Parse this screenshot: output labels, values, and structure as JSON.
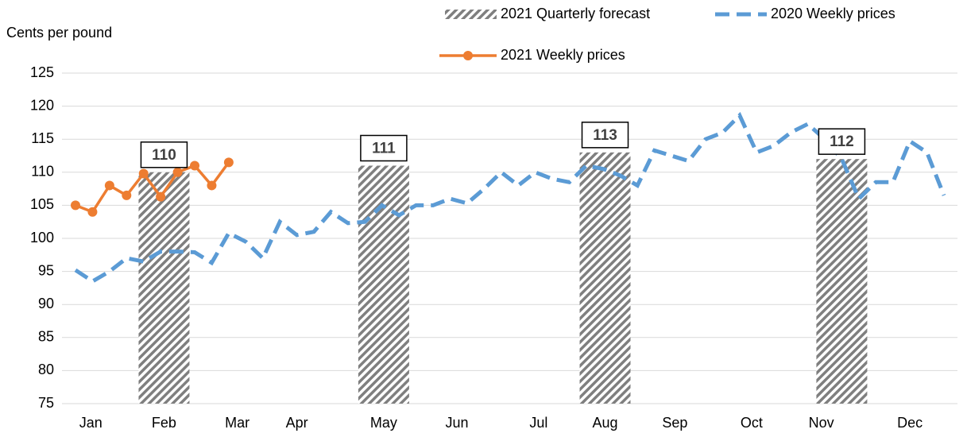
{
  "chart_data": {
    "type": "combo",
    "y_label": "Cents per pound",
    "ylim": [
      75,
      125
    ],
    "yticks": [
      75,
      80,
      85,
      90,
      95,
      100,
      105,
      110,
      115,
      120,
      125
    ],
    "grid": true,
    "xlim": [
      0,
      51
    ],
    "xticks": [
      {
        "value": 0.9,
        "label": "Jan"
      },
      {
        "value": 5.2,
        "label": "Feb"
      },
      {
        "value": 9.5,
        "label": "Mar"
      },
      {
        "value": 13,
        "label": "Apr"
      },
      {
        "value": 18.1,
        "label": "May"
      },
      {
        "value": 22.4,
        "label": "Jun"
      },
      {
        "value": 27.2,
        "label": "Jul"
      },
      {
        "value": 31.1,
        "label": "Aug"
      },
      {
        "value": 35.2,
        "label": "Sep"
      },
      {
        "value": 39.7,
        "label": "Oct"
      },
      {
        "value": 43.8,
        "label": "Nov"
      },
      {
        "value": 49,
        "label": "Dec"
      }
    ],
    "series": [
      {
        "name": "2021 Quarterly forecast",
        "type": "bar",
        "color": "#7f7f7f",
        "x": [
          5.2,
          18.1,
          31.1,
          45
        ],
        "values": [
          110,
          111,
          113,
          112
        ]
      },
      {
        "name": "2020 Weekly prices",
        "type": "dashed-line",
        "color": "#5b9bd5",
        "x": [
          0,
          1,
          2,
          3,
          4,
          5,
          6,
          7,
          8,
          9,
          10,
          11,
          12,
          13,
          14,
          15,
          16,
          17,
          18,
          19,
          20,
          21,
          22,
          23,
          24,
          25,
          26,
          27,
          28,
          29,
          30,
          31,
          32,
          33,
          34,
          35,
          36,
          37,
          38,
          39,
          40,
          41,
          42,
          43,
          44,
          45,
          46,
          47,
          48,
          49,
          50,
          51
        ],
        "values": [
          95.2,
          93.5,
          95,
          97,
          96.5,
          98,
          98,
          97.9,
          96.3,
          100.8,
          99.5,
          97,
          102.5,
          100.5,
          101,
          104,
          102.3,
          102.5,
          105,
          103.5,
          105,
          105,
          106,
          105.3,
          107.5,
          110,
          108,
          110,
          109,
          108.5,
          111,
          110.5,
          109.5,
          108,
          113.3,
          112.5,
          111.7,
          115,
          116,
          118.6,
          113,
          114,
          116,
          117.3,
          115,
          112,
          106,
          108.5,
          108.5,
          114.7,
          113,
          106.5
        ]
      },
      {
        "name": "2021 Weekly prices",
        "type": "marker-line",
        "color": "#ed7d31",
        "x": [
          0,
          1,
          2,
          3,
          4,
          5,
          6,
          7,
          8,
          9
        ],
        "values": [
          105,
          104,
          108,
          106.5,
          109.8,
          106.3,
          110,
          111,
          108,
          111.5
        ]
      }
    ]
  }
}
